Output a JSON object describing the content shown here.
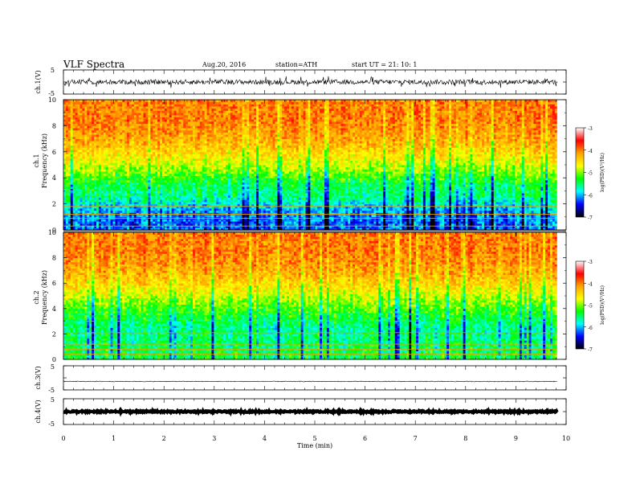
{
  "header": {
    "title": "VLF  Spectra",
    "date": "Aug.20, 2016",
    "station": "station=ATH",
    "start": "start  UT  =    21: 10: 1"
  },
  "xaxis": {
    "label": "Time  (min)",
    "ticks": [
      "0",
      "1",
      "2",
      "3",
      "4",
      "5",
      "6",
      "7",
      "8",
      "9",
      "10"
    ],
    "range": [
      0,
      10
    ],
    "data_end_min": 9.82
  },
  "panels": {
    "ch1": {
      "label": "ch.1(V)",
      "ticks": [
        "5",
        "-5"
      ]
    },
    "spec1": {
      "label": "ch.1",
      "ylabel": "Frequency  (kHz)",
      "ticks": [
        "0",
        "2",
        "4",
        "6",
        "8",
        "10"
      ]
    },
    "spec2": {
      "label": "ch.2",
      "ylabel": "Frequency  (kHz)",
      "ticks": [
        "0",
        "2",
        "4",
        "6",
        "8",
        "10"
      ]
    },
    "ch3": {
      "label": "ch.3(V)",
      "ticks": [
        "5",
        "-5"
      ]
    },
    "ch4": {
      "label": "ch.4(V)",
      "ticks": [
        "5",
        "-5"
      ]
    }
  },
  "colorbar": {
    "label": "log(PSD)(V²/Hz)",
    "ticks": [
      "-3",
      "-4",
      "-5",
      "-6",
      "-7"
    ],
    "colors": [
      "#ffffff",
      "#ff0000",
      "#ffa500",
      "#ffff00",
      "#00ff00",
      "#00ffff",
      "#0000ff",
      "#000000"
    ]
  },
  "chart_data": [
    {
      "type": "line",
      "name": "ch.1(V)",
      "xlabel": "Time  (min)",
      "ylabel": "ch.1(V)",
      "xlim": [
        0,
        10
      ],
      "ylim": [
        -5,
        5
      ],
      "x_extent": [
        0,
        9.82
      ],
      "baseline": 0,
      "amplitude_typical": 1.0,
      "amplitude_peak": 2.5
    },
    {
      "type": "heatmap",
      "name": "ch.1",
      "xlabel": "Time  (min)",
      "ylabel": "Frequency  (kHz)",
      "xlim": [
        0,
        10
      ],
      "ylim": [
        0,
        10
      ],
      "x_extent": [
        0,
        9.82
      ],
      "z_label": "log(PSD)(V²/Hz)",
      "zlim": [
        -7,
        -3
      ],
      "colorscale": [
        "#000000",
        "#0000ff",
        "#00ffff",
        "#00ff00",
        "#ffff00",
        "#ffa500",
        "#ff0000",
        "#ffffff"
      ],
      "frequency_profile": [
        {
          "freq_khz": 0.5,
          "log_psd": -6.2
        },
        {
          "freq_khz": 1.5,
          "log_psd": -6.0
        },
        {
          "freq_khz": 2.5,
          "log_psd": -5.6
        },
        {
          "freq_khz": 3.5,
          "log_psd": -5.4
        },
        {
          "freq_khz": 4.5,
          "log_psd": -5.0
        },
        {
          "freq_khz": 5.5,
          "log_psd": -4.6
        },
        {
          "freq_khz": 6.5,
          "log_psd": -4.3
        },
        {
          "freq_khz": 7.5,
          "log_psd": -4.1
        },
        {
          "freq_khz": 8.5,
          "log_psd": -4.0
        },
        {
          "freq_khz": 9.5,
          "log_psd": -4.0
        }
      ],
      "horizontal_lines_khz": [
        0.3,
        0.9,
        1.2,
        1.8,
        3.0
      ],
      "grey_band_khz": [
        -0.4,
        0.0
      ]
    },
    {
      "type": "heatmap",
      "name": "ch.2",
      "xlabel": "Time  (min)",
      "ylabel": "Frequency  (kHz)",
      "xlim": [
        0,
        10
      ],
      "ylim": [
        0,
        10
      ],
      "x_extent": [
        0,
        9.82
      ],
      "z_label": "log(PSD)(V²/Hz)",
      "zlim": [
        -7,
        -3
      ],
      "colorscale": [
        "#000000",
        "#0000ff",
        "#00ffff",
        "#00ff00",
        "#ffff00",
        "#ffa500",
        "#ff0000",
        "#ffffff"
      ],
      "frequency_profile": [
        {
          "freq_khz": 0.5,
          "log_psd": -5.4
        },
        {
          "freq_khz": 1.5,
          "log_psd": -5.5
        },
        {
          "freq_khz": 2.5,
          "log_psd": -5.6
        },
        {
          "freq_khz": 3.5,
          "log_psd": -5.3
        },
        {
          "freq_khz": 4.5,
          "log_psd": -5.0
        },
        {
          "freq_khz": 5.5,
          "log_psd": -4.6
        },
        {
          "freq_khz": 6.5,
          "log_psd": -4.3
        },
        {
          "freq_khz": 7.5,
          "log_psd": -4.1
        },
        {
          "freq_khz": 8.5,
          "log_psd": -4.0
        },
        {
          "freq_khz": 9.5,
          "log_psd": -4.0
        }
      ],
      "horizontal_lines_khz": [
        0.4,
        0.8,
        1.2,
        2.1,
        3.0
      ]
    },
    {
      "type": "line",
      "name": "ch.3(V)",
      "xlabel": "Time  (min)",
      "ylabel": "ch.3(V)",
      "xlim": [
        0,
        10
      ],
      "ylim": [
        -5,
        5
      ],
      "x_extent": [
        0,
        9.82
      ],
      "baseline": -1.5,
      "amplitude_typical": 0.15
    },
    {
      "type": "line",
      "name": "ch.4(V)",
      "xlabel": "Time  (min)",
      "ylabel": "ch.4(V)",
      "xlim": [
        0,
        10
      ],
      "ylim": [
        -5,
        5
      ],
      "x_extent": [
        0,
        9.82
      ],
      "baseline": 0,
      "amplitude_typical": 0.3
    }
  ]
}
